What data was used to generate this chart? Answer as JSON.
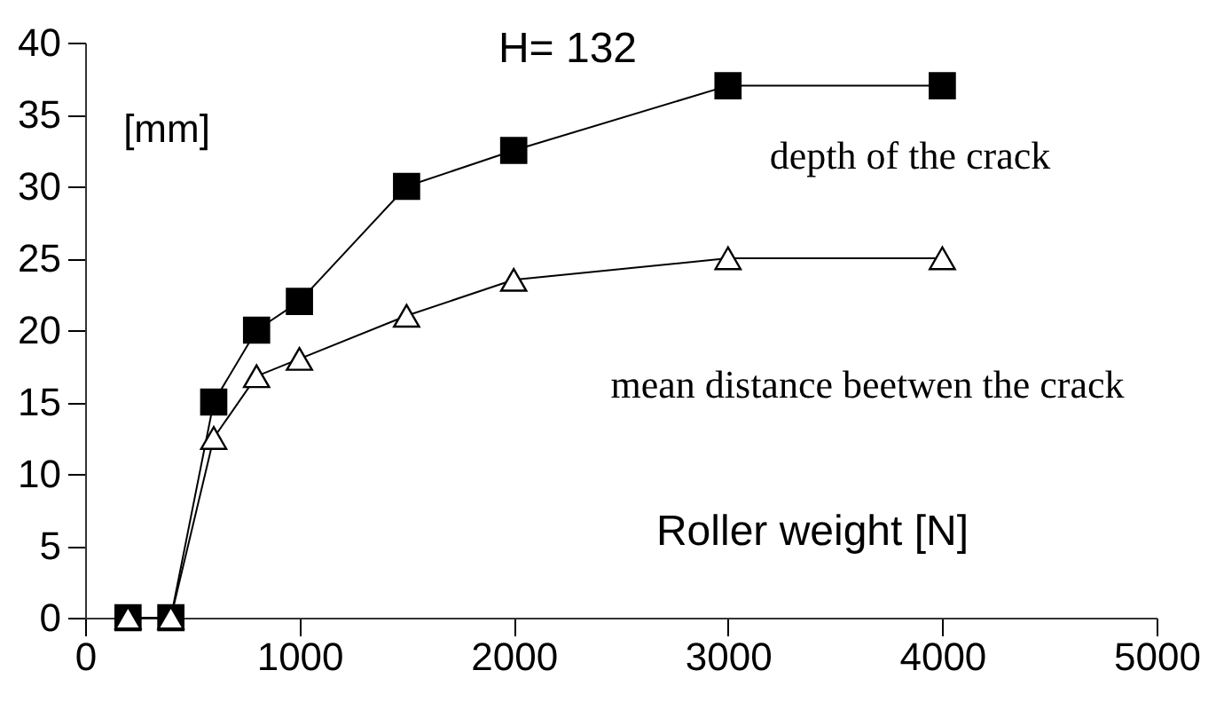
{
  "chart_data": {
    "type": "line",
    "title": "H= 132",
    "xlabel": "Roller weight [N]",
    "ylabel": "[mm]",
    "x": [
      200,
      400,
      600,
      800,
      1000,
      1500,
      2000,
      3000,
      4000
    ],
    "series": [
      {
        "name": "depth of the crack",
        "color": "#000000",
        "marker": "square",
        "values": [
          0,
          0,
          15,
          20,
          22,
          30,
          32.5,
          37,
          37
        ]
      },
      {
        "name": "mean distance beetwen the crack",
        "color": "#000000",
        "marker": "triangle",
        "values": [
          0,
          0,
          12.5,
          16.8,
          18,
          21,
          23.5,
          25,
          25
        ]
      }
    ],
    "xlim": [
      0,
      5000
    ],
    "xticks": [
      0,
      1000,
      2000,
      3000,
      4000,
      5000
    ],
    "ylim": [
      0,
      40
    ],
    "yticks": [
      0,
      5,
      10,
      15,
      20,
      25,
      30,
      35,
      40
    ],
    "grid": false,
    "legend": false
  }
}
